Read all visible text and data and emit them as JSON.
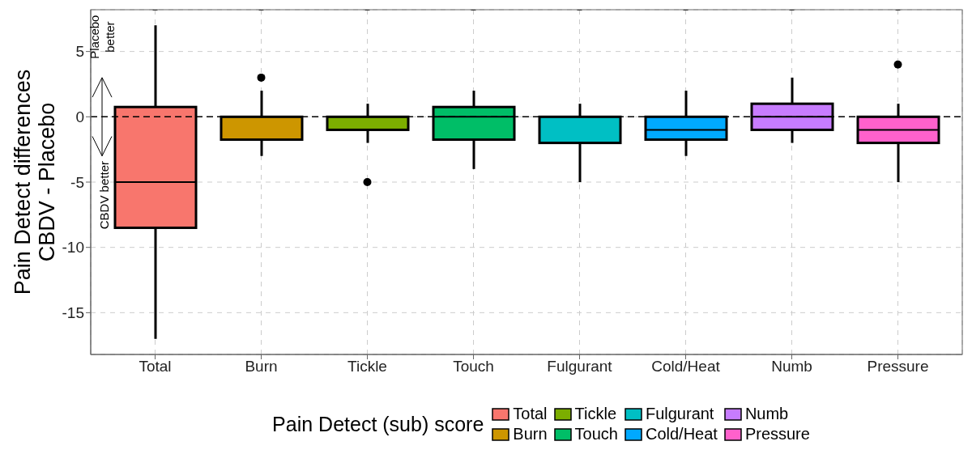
{
  "chart_data": {
    "type": "box",
    "ylabel": "Pain Detect differences\nCBDV - Placebo",
    "legend_title": "Pain Detect (sub) score",
    "legend": "bottom",
    "grid": true,
    "categories": [
      "Total",
      "Burn",
      "Tickle",
      "Touch",
      "Fulgurant",
      "Cold/Heat",
      "Numb",
      "Pressure"
    ],
    "series": [
      {
        "name": "Total",
        "color": "#f8766d",
        "boxes": [
          {
            "low": -17,
            "q1": -8.5,
            "median": -5,
            "q3": 0.75,
            "high": 7
          },
          null,
          null,
          null,
          null,
          null,
          null,
          null
        ]
      },
      {
        "name": "Burn",
        "color": "#cd9600",
        "boxes": [
          null,
          {
            "low": -3,
            "q1": -1.75,
            "median": 0,
            "q3": 0,
            "high": 2,
            "outliers": [
              3
            ]
          },
          null,
          null,
          null,
          null,
          null,
          null
        ]
      },
      {
        "name": "Tickle",
        "color": "#7cae00",
        "boxes": [
          null,
          null,
          {
            "low": -2,
            "q1": -1,
            "median": 0,
            "q3": 0,
            "high": 1,
            "outliers": [
              -5
            ]
          },
          null,
          null,
          null,
          null,
          null
        ]
      },
      {
        "name": "Touch",
        "color": "#00be67",
        "boxes": [
          null,
          null,
          null,
          {
            "low": -4,
            "q1": -1.75,
            "median": 0,
            "q3": 0.75,
            "high": 2
          },
          null,
          null,
          null,
          null
        ]
      },
      {
        "name": "Fulgurant",
        "color": "#00bfc4",
        "boxes": [
          null,
          null,
          null,
          null,
          {
            "low": -5,
            "q1": -2,
            "median": 0,
            "q3": 0,
            "high": 1
          },
          null,
          null,
          null
        ]
      },
      {
        "name": "Cold/Heat",
        "color": "#00a9ff",
        "boxes": [
          null,
          null,
          null,
          null,
          null,
          {
            "low": -3,
            "q1": -1.75,
            "median": -1,
            "q3": 0,
            "high": 2
          },
          null,
          null
        ]
      },
      {
        "name": "Numb",
        "color": "#c77cff",
        "boxes": [
          null,
          null,
          null,
          null,
          null,
          null,
          {
            "low": -2,
            "q1": -1,
            "median": 0,
            "q3": 1,
            "high": 3
          },
          null
        ]
      },
      {
        "name": "Pressure",
        "color": "#ff61cc",
        "boxes": [
          null,
          null,
          null,
          null,
          null,
          null,
          null,
          {
            "low": -5,
            "q1": -2,
            "median": -1,
            "q3": 0,
            "high": 1,
            "outliers": [
              4
            ]
          }
        ]
      }
    ],
    "ylim": [
      -18.2,
      8.2
    ],
    "yticks": [
      -15,
      -10,
      -5,
      0,
      5
    ],
    "ref_lines": [
      {
        "axis": "y",
        "value": 0,
        "line_style": "dashed"
      }
    ],
    "annotations": [
      "Placebo better",
      "CBDV better"
    ]
  }
}
